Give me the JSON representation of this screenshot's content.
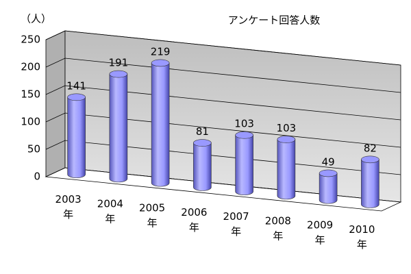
{
  "chart_data": {
    "type": "bar",
    "title": "アンケート回答人数",
    "y_axis_label": "（人）",
    "categories": [
      "2003年",
      "2004年",
      "2005年",
      "2006年",
      "2007年",
      "2008年",
      "2009年",
      "2010年"
    ],
    "values": [
      141,
      191,
      219,
      81,
      103,
      103,
      49,
      82
    ],
    "color": "#9999ff",
    "ylim": [
      0,
      250
    ],
    "yticks": [
      0,
      50,
      100,
      150,
      200,
      250
    ],
    "grid": true
  }
}
